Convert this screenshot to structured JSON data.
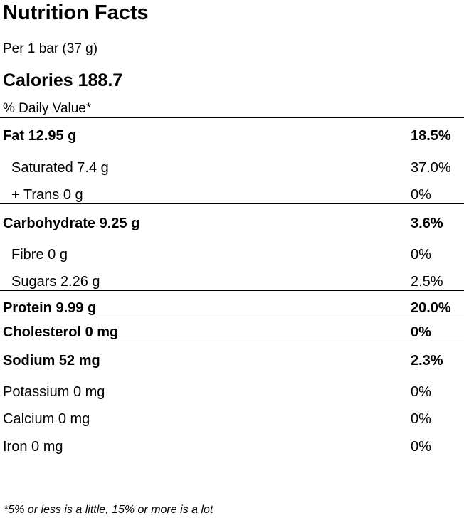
{
  "title": "Nutrition Facts",
  "serving": "Per 1 bar (37 g)",
  "calories": {
    "label": "Calories",
    "value": "188.7"
  },
  "daily_value_header": "% Daily Value*",
  "nutrients": [
    {
      "name": "Fat",
      "amount": "12.95 g",
      "dv": "18.5%"
    },
    {
      "name": "Saturated",
      "amount": "7.4 g",
      "dv": "37.0%"
    },
    {
      "name": "+ Trans",
      "amount": "0 g",
      "dv": "0%"
    },
    {
      "name": "Carbohydrate",
      "amount": "9.25 g",
      "dv": "3.6%"
    },
    {
      "name": "Fibre",
      "amount": "0 g",
      "dv": "0%"
    },
    {
      "name": "Sugars",
      "amount": "2.26 g",
      "dv": "2.5%"
    },
    {
      "name": "Protein",
      "amount": "9.99 g",
      "dv": "20.0%"
    },
    {
      "name": "Cholesterol",
      "amount": "0 mg",
      "dv": "0%"
    },
    {
      "name": "Sodium",
      "amount": "52 mg",
      "dv": "2.3%"
    },
    {
      "name": "Potassium",
      "amount": "0 mg",
      "dv": "0%"
    },
    {
      "name": "Calcium",
      "amount": "0 mg",
      "dv": "0%"
    },
    {
      "name": "Iron",
      "amount": "0 mg",
      "dv": "0%"
    }
  ],
  "footnote": "*5% or less is a little, 15% or more is a lot"
}
